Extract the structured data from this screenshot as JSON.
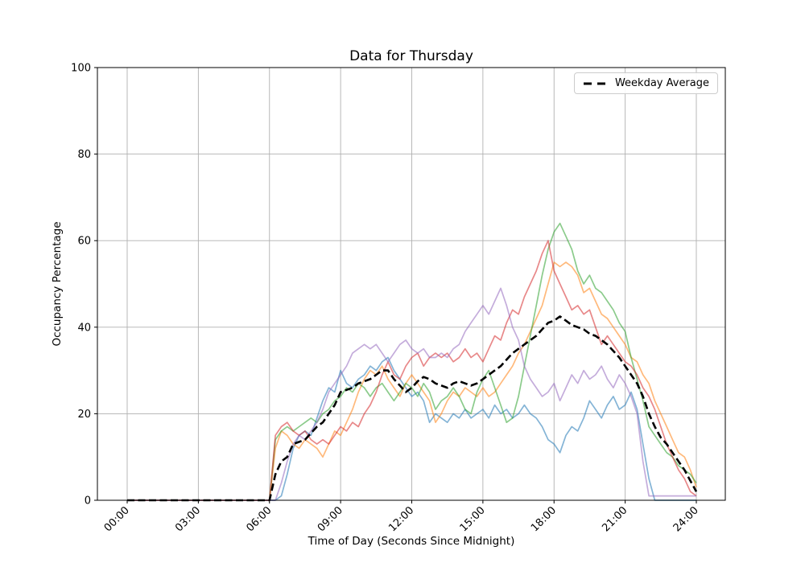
{
  "chart_data": {
    "type": "line",
    "title": "Data for Thursday",
    "xlabel": "Time of Day (Seconds Since Midnight)",
    "ylabel": "Occupancy Percentage",
    "x_tick_labels": [
      "00:00",
      "03:00",
      "06:00",
      "09:00",
      "12:00",
      "15:00",
      "18:00",
      "21:00",
      "24:00"
    ],
    "x_tick_hours": [
      0,
      3,
      6,
      9,
      12,
      15,
      18,
      21,
      24
    ],
    "y_ticks": [
      0,
      20,
      40,
      60,
      80,
      100
    ],
    "ylim": [
      0,
      100
    ],
    "xlim_hours": [
      0,
      24
    ],
    "x_start_hour": 0,
    "x_step_hours": 0.25,
    "grid": true,
    "grid_color": "#b0b0b0",
    "spine_color": "#000000",
    "background_color": "#ffffff",
    "legend": {
      "position": "upper right",
      "entries": [
        {
          "label": "Weekday Average",
          "line_style": "dashed",
          "color": "#000000"
        }
      ]
    },
    "series": [
      {
        "id": "day-line-1",
        "color": "#1f77b4",
        "alpha": 0.55,
        "width": 1.7,
        "style": "solid",
        "values": [
          0,
          0,
          0,
          0,
          0,
          0,
          0,
          0,
          0,
          0,
          0,
          0,
          0,
          0,
          0,
          0,
          0,
          0,
          0,
          0,
          0,
          0,
          0,
          0,
          0,
          0,
          1,
          6,
          12,
          15,
          16,
          15,
          19,
          23,
          26,
          25,
          30,
          27,
          26,
          28,
          29,
          31,
          30,
          32,
          33,
          30,
          28,
          26,
          24,
          25,
          23,
          18,
          20,
          19,
          18,
          20,
          19,
          21,
          19,
          20,
          21,
          19,
          22,
          20,
          21,
          19,
          20,
          22,
          20,
          19,
          17,
          14,
          13,
          11,
          15,
          17,
          16,
          19,
          23,
          21,
          19,
          22,
          24,
          21,
          22,
          25,
          21,
          13,
          5,
          0,
          0,
          0,
          0,
          0,
          0,
          0,
          0
        ]
      },
      {
        "id": "day-line-2",
        "color": "#ff7f0e",
        "alpha": 0.55,
        "width": 1.7,
        "style": "solid",
        "values": [
          0,
          0,
          0,
          0,
          0,
          0,
          0,
          0,
          0,
          0,
          0,
          0,
          0,
          0,
          0,
          0,
          0,
          0,
          0,
          0,
          0,
          0,
          0,
          0,
          0,
          12,
          16,
          15,
          13,
          12,
          14,
          13,
          12,
          10,
          13,
          16,
          15,
          18,
          21,
          25,
          28,
          30,
          29,
          31,
          28,
          26,
          24,
          27,
          29,
          27,
          25,
          23,
          18,
          20,
          23,
          25,
          24,
          26,
          25,
          24,
          26,
          24,
          25,
          27,
          29,
          31,
          34,
          36,
          39,
          42,
          45,
          50,
          55,
          54,
          55,
          54,
          52,
          48,
          49,
          46,
          43,
          42,
          40,
          38,
          36,
          33,
          32,
          29,
          27,
          23,
          20,
          17,
          14,
          11,
          10,
          7,
          3
        ]
      },
      {
        "id": "day-line-3",
        "color": "#2ca02c",
        "alpha": 0.55,
        "width": 1.7,
        "style": "solid",
        "values": [
          0,
          0,
          0,
          0,
          0,
          0,
          0,
          0,
          0,
          0,
          0,
          0,
          0,
          0,
          0,
          0,
          0,
          0,
          0,
          0,
          0,
          0,
          0,
          0,
          0,
          14,
          16,
          17,
          16,
          17,
          18,
          19,
          18,
          20,
          21,
          23,
          24,
          26,
          25,
          27,
          26,
          24,
          26,
          27,
          25,
          23,
          25,
          27,
          26,
          24,
          27,
          25,
          21,
          23,
          24,
          26,
          24,
          21,
          20,
          25,
          28,
          30,
          26,
          22,
          18,
          19,
          24,
          31,
          38,
          45,
          52,
          58,
          62,
          64,
          61,
          58,
          53,
          50,
          52,
          49,
          48,
          46,
          44,
          41,
          39,
          33,
          28,
          23,
          17,
          15,
          13,
          11,
          10,
          8,
          7,
          6,
          4
        ]
      },
      {
        "id": "day-line-4",
        "color": "#d62728",
        "alpha": 0.55,
        "width": 1.7,
        "style": "solid",
        "values": [
          0,
          0,
          0,
          0,
          0,
          0,
          0,
          0,
          0,
          0,
          0,
          0,
          0,
          0,
          0,
          0,
          0,
          0,
          0,
          0,
          0,
          0,
          0,
          0,
          0,
          15,
          17,
          18,
          16,
          15,
          16,
          14,
          13,
          14,
          13,
          15,
          17,
          16,
          18,
          17,
          20,
          22,
          25,
          29,
          32,
          29,
          28,
          31,
          33,
          34,
          31,
          33,
          34,
          33,
          34,
          32,
          33,
          35,
          33,
          34,
          32,
          35,
          38,
          37,
          41,
          44,
          43,
          47,
          50,
          53,
          57,
          60,
          53,
          50,
          47,
          44,
          45,
          43,
          44,
          40,
          36,
          38,
          36,
          34,
          32,
          31,
          29,
          26,
          24,
          21,
          17,
          13,
          10,
          7,
          5,
          2,
          1
        ]
      },
      {
        "id": "day-line-5",
        "color": "#9467bd",
        "alpha": 0.55,
        "width": 1.7,
        "style": "solid",
        "values": [
          0,
          0,
          0,
          0,
          0,
          0,
          0,
          0,
          0,
          0,
          0,
          0,
          0,
          0,
          0,
          0,
          0,
          0,
          0,
          0,
          0,
          0,
          0,
          0,
          0,
          0,
          4,
          9,
          13,
          15,
          14,
          16,
          18,
          21,
          25,
          27,
          29,
          31,
          34,
          35,
          36,
          35,
          36,
          34,
          32,
          34,
          36,
          37,
          35,
          34,
          35,
          33,
          33,
          34,
          33,
          35,
          36,
          39,
          41,
          43,
          45,
          43,
          46,
          49,
          45,
          40,
          37,
          31,
          28,
          26,
          24,
          25,
          27,
          23,
          26,
          29,
          27,
          30,
          28,
          29,
          31,
          28,
          26,
          29,
          27,
          24,
          20,
          9,
          1,
          1,
          1,
          1,
          1,
          1,
          1,
          1,
          1
        ]
      },
      {
        "id": "weekday-average",
        "color": "#000000",
        "alpha": 1,
        "width": 2.6,
        "style": "dashed",
        "values": [
          0,
          0,
          0,
          0,
          0,
          0,
          0,
          0,
          0,
          0,
          0,
          0,
          0,
          0,
          0,
          0,
          0,
          0,
          0,
          0,
          0,
          0,
          0,
          0,
          0,
          6,
          9,
          10,
          13,
          13.5,
          14,
          15.5,
          17,
          18,
          20,
          22,
          25,
          25.5,
          26,
          27,
          27.5,
          28,
          29,
          30,
          30,
          28,
          26.5,
          25,
          26,
          27.5,
          28.5,
          28,
          27,
          26.5,
          26,
          27,
          27.5,
          27,
          26.5,
          27,
          28,
          29,
          30,
          31,
          32.5,
          34,
          35,
          36,
          37,
          38,
          39.5,
          41,
          41.5,
          42.5,
          41.5,
          40.5,
          40,
          39.5,
          38.5,
          38,
          37,
          36,
          34.5,
          33,
          31,
          29,
          27,
          24,
          20,
          17,
          14.5,
          13,
          11,
          9,
          7,
          4.5,
          2
        ]
      }
    ]
  }
}
